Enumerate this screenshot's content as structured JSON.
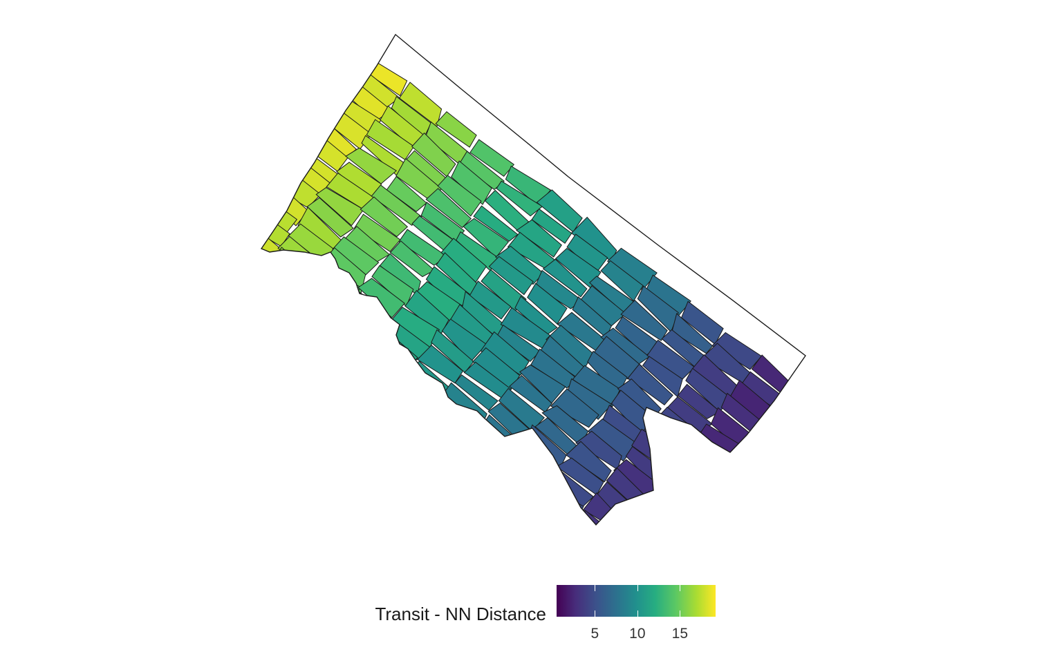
{
  "map": {
    "legend": {
      "title": "Transit - NN Distance",
      "ticks": [
        {
          "label": "5",
          "value": 5
        },
        {
          "label": "10",
          "value": 10
        },
        {
          "label": "15",
          "value": 15
        }
      ],
      "range": [
        0.5,
        19.2
      ],
      "colormap": [
        "#440154",
        "#472d7b",
        "#3b528b",
        "#2c728e",
        "#21908d",
        "#27ad81",
        "#5cc863",
        "#aadc32",
        "#fde725"
      ]
    },
    "fill_gradient": "high values (yellow) in the north-west, low values (dark purple) in the south-east",
    "border_color": "#1a1a1a"
  }
}
